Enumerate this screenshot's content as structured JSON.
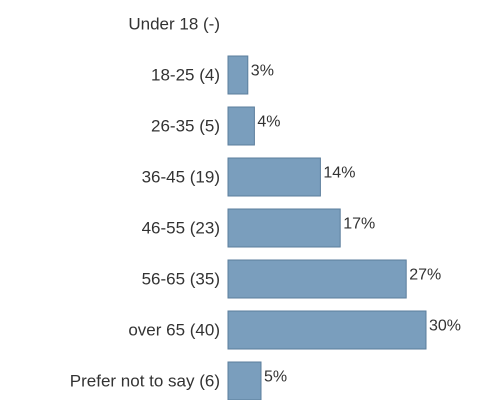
{
  "chart_data": {
    "type": "bar",
    "orientation": "horizontal",
    "categories": [
      "Under 18 (-)",
      "18-25 (4)",
      "26-35 (5)",
      "36-45 (19)",
      "46-55 (23)",
      "56-65 (35)",
      "over 65 (40)",
      "Prefer not to say (6)"
    ],
    "values": [
      null,
      3,
      4,
      14,
      17,
      27,
      30,
      5
    ],
    "value_labels": [
      "",
      "3%",
      "4%",
      "14%",
      "17%",
      "27%",
      "30%",
      "5%"
    ],
    "unit": "%",
    "xlim": [
      0,
      30
    ],
    "grid": false,
    "legend": "none",
    "bar_color": "#7a9ebd",
    "bar_edge_color": "#5b7e9c"
  }
}
